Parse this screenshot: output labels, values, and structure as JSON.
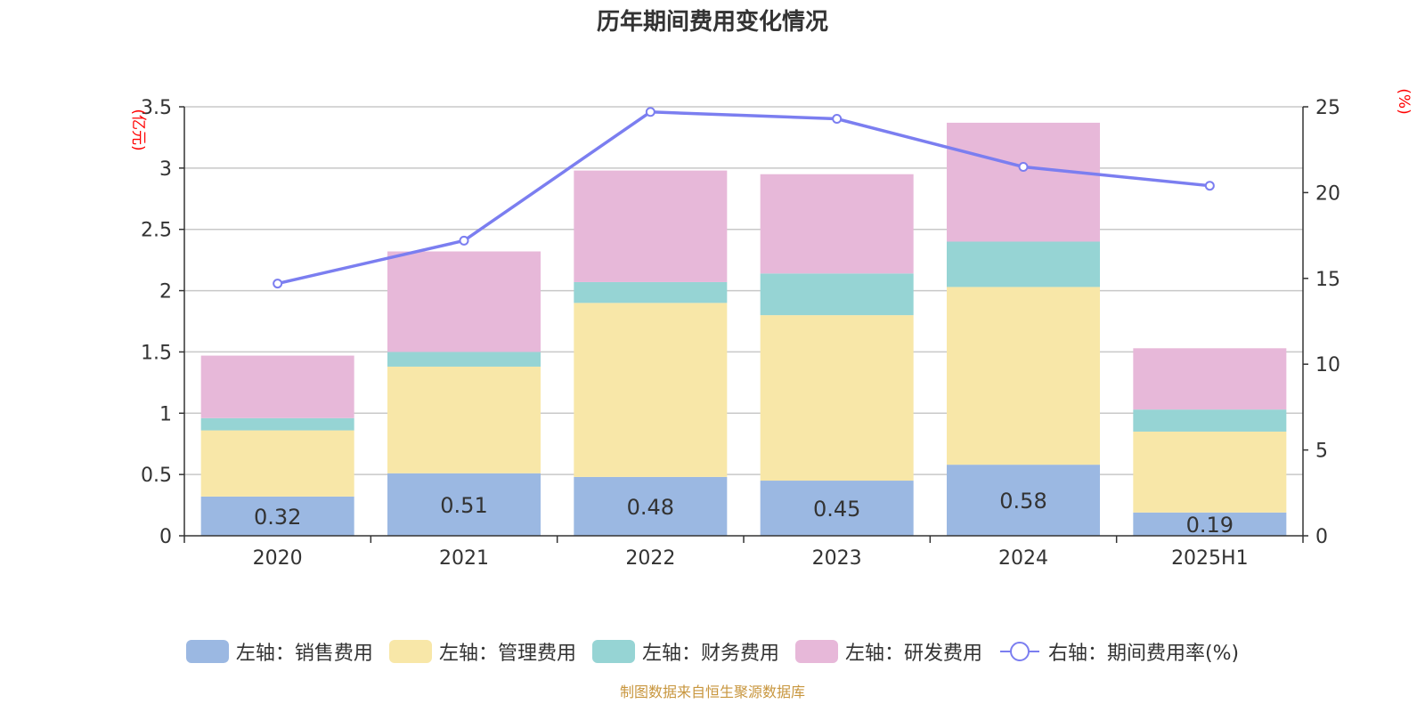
{
  "title": "历年期间费用变化情况",
  "source_note": "制图数据来自恒生聚源数据库",
  "colors": {
    "sales": "#9bb8e2",
    "admin": "#f8e7a8",
    "finance": "#96d4d4",
    "rnd": "#e7b8d9",
    "rate_line": "#7b7ef0",
    "axis_unit": "#ff0000",
    "grid": "#c8c8c8",
    "text": "#333333"
  },
  "chart_data": {
    "type": "bar",
    "stacked": true,
    "categories": [
      "2020",
      "2021",
      "2022",
      "2023",
      "2024",
      "2025H1"
    ],
    "y_left": {
      "unit_label": "(亿元)",
      "lim": [
        0,
        3.5
      ],
      "ticks": [
        "0",
        "0.5",
        "1",
        "1.5",
        "2",
        "2.5",
        "3",
        "3.5"
      ]
    },
    "y_right": {
      "unit_label": "(%)",
      "lim": [
        0,
        25
      ],
      "ticks": [
        "0",
        "5",
        "10",
        "15",
        "20",
        "25"
      ]
    },
    "grid": true,
    "legend_position": "bottom",
    "series": [
      {
        "name": "左轴：销售费用",
        "axis": "left",
        "kind": "bar",
        "color_key": "sales",
        "values": [
          0.32,
          0.51,
          0.48,
          0.45,
          0.58,
          0.19
        ],
        "data_labels": [
          "0.32",
          "0.51",
          "0.48",
          "0.45",
          "0.58",
          "0.19"
        ]
      },
      {
        "name": "左轴：管理费用",
        "axis": "left",
        "kind": "bar",
        "color_key": "admin",
        "values": [
          0.54,
          0.87,
          1.42,
          1.35,
          1.45,
          0.66
        ]
      },
      {
        "name": "左轴：财务费用",
        "axis": "left",
        "kind": "bar",
        "color_key": "finance",
        "values": [
          0.1,
          0.12,
          0.17,
          0.34,
          0.37,
          0.18
        ]
      },
      {
        "name": "左轴：研发费用",
        "axis": "left",
        "kind": "bar",
        "color_key": "rnd",
        "values": [
          0.51,
          0.82,
          0.91,
          0.81,
          0.97,
          0.5
        ]
      },
      {
        "name": "右轴：期间费用率(%)",
        "axis": "right",
        "kind": "line",
        "color_key": "rate_line",
        "values": [
          14.7,
          17.2,
          24.7,
          24.3,
          21.5,
          20.4
        ]
      }
    ]
  }
}
